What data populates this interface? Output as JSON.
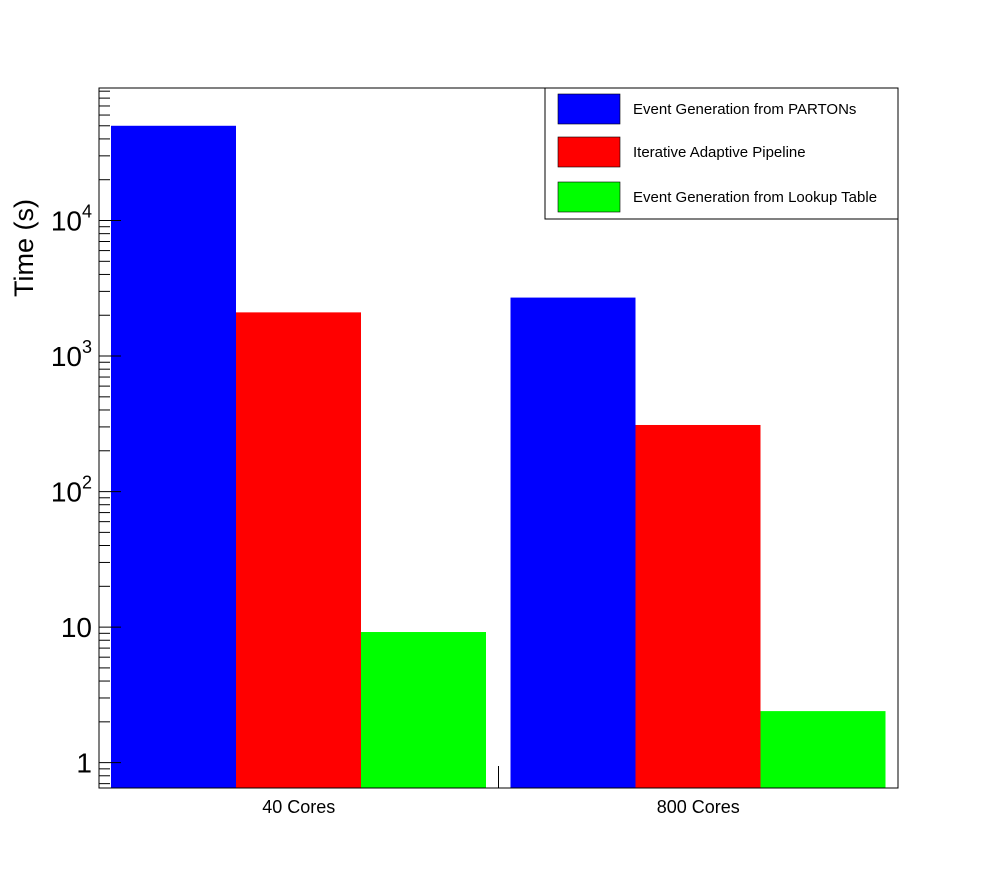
{
  "chart_data": {
    "type": "bar",
    "ylabel": "Time (s)",
    "yscale": "log",
    "ylim": [
      0.65,
      95000
    ],
    "categories": [
      "40 Cores",
      "800 Cores"
    ],
    "series": [
      {
        "name": "Event Generation from PARTONs",
        "color": "#0000ff",
        "values": [
          50000,
          2700
        ]
      },
      {
        "name": "Iterative  Adaptive Pipeline",
        "color": "#ff0000",
        "values": [
          2100,
          310
        ]
      },
      {
        "name": "Event Generation from Lookup Table",
        "color": "#00ff00",
        "values": [
          9.2,
          2.4
        ]
      }
    ],
    "y_ticks": [
      {
        "value": 1,
        "label": "1"
      },
      {
        "value": 10,
        "label": "10"
      },
      {
        "value": 100,
        "label": "10",
        "sup": "2"
      },
      {
        "value": 1000,
        "label": "10",
        "sup": "3"
      },
      {
        "value": 10000,
        "label": "10",
        "sup": "4"
      }
    ],
    "legend": "top-right",
    "grid": false
  }
}
